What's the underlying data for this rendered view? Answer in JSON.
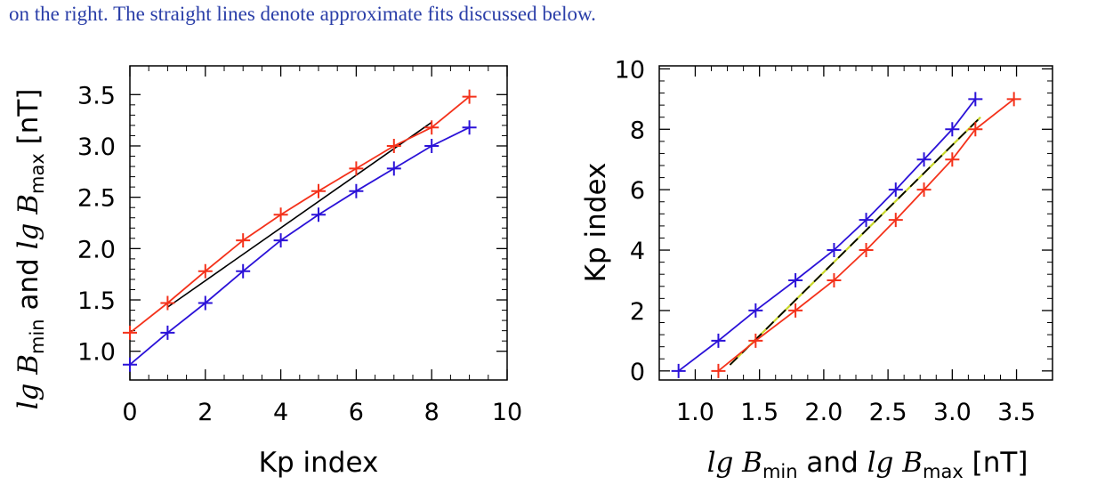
{
  "caption_fragment": "on the right. The straight lines denote approximate fits discussed below.",
  "colors": {
    "series_min": "#2b12d8",
    "series_max": "#f4321b",
    "fit_left": "#000000",
    "fit_right_dash": "#000000",
    "fit_right_under": "#c9d82a",
    "axis": "#000000"
  },
  "chart_data": [
    {
      "type": "line",
      "panel": "left",
      "xlabel": "Kp index",
      "ylabel": {
        "prefix": "lg",
        "b1": "B",
        "sub1": "min",
        "mid": "and",
        "prefix2": "lg",
        "b2": "B",
        "sub2": "max",
        "unit": "[nT]"
      },
      "xlim": [
        0,
        10
      ],
      "ylim": [
        0.72,
        3.78
      ],
      "xticks": [
        0,
        2,
        4,
        6,
        8,
        10
      ],
      "xtick_labels": [
        "0",
        "2",
        "4",
        "6",
        "8",
        "10"
      ],
      "yticks": [
        1.0,
        1.5,
        2.0,
        2.5,
        3.0,
        3.5
      ],
      "ytick_labels": [
        "1.0",
        "1.5",
        "2.0",
        "2.5",
        "3.0",
        "3.5"
      ],
      "marker": "+",
      "series": [
        {
          "key": "min",
          "x": [
            0,
            1,
            2,
            3,
            4,
            5,
            6,
            7,
            8,
            9
          ],
          "y": [
            0.87,
            1.18,
            1.47,
            1.78,
            2.08,
            2.33,
            2.56,
            2.78,
            3.0,
            3.18
          ]
        },
        {
          "key": "max",
          "x": [
            0,
            1,
            2,
            3,
            4,
            5,
            6,
            7,
            8,
            9
          ],
          "y": [
            1.18,
            1.47,
            1.78,
            2.08,
            2.33,
            2.56,
            2.78,
            3.0,
            3.18,
            3.48
          ]
        }
      ],
      "fit": {
        "x": [
          1,
          8
        ],
        "y": [
          1.43,
          3.23
        ]
      }
    },
    {
      "type": "line",
      "panel": "right",
      "ylabel": "Kp index",
      "xlabel": {
        "prefix": "lg",
        "b1": "B",
        "sub1": "min",
        "mid": "and",
        "prefix2": "lg",
        "b2": "B",
        "sub2": "max",
        "unit": "[nT]"
      },
      "xlim": [
        0.72,
        3.78
      ],
      "ylim": [
        -0.3,
        10.1
      ],
      "xticks": [
        1.0,
        1.5,
        2.0,
        2.5,
        3.0,
        3.5
      ],
      "xtick_labels": [
        "1.0",
        "1.5",
        "2.0",
        "2.5",
        "3.0",
        "3.5"
      ],
      "yticks": [
        0,
        2,
        4,
        6,
        8,
        10
      ],
      "ytick_labels": [
        "0",
        "2",
        "4",
        "6",
        "8",
        "10"
      ],
      "marker": "+",
      "series": [
        {
          "key": "min",
          "x": [
            0.87,
            1.18,
            1.47,
            1.78,
            2.08,
            2.33,
            2.56,
            2.78,
            3.0,
            3.18
          ],
          "y": [
            0,
            1,
            2,
            3,
            4,
            5,
            6,
            7,
            8,
            9
          ]
        },
        {
          "key": "max",
          "x": [
            1.18,
            1.47,
            1.78,
            2.08,
            2.33,
            2.56,
            2.78,
            3.0,
            3.18,
            3.48
          ],
          "y": [
            0,
            1,
            2,
            3,
            4,
            5,
            6,
            7,
            8,
            9
          ]
        }
      ],
      "fit": {
        "x": [
          1.27,
          3.22
        ],
        "y": [
          0.2,
          8.4
        ]
      }
    }
  ]
}
